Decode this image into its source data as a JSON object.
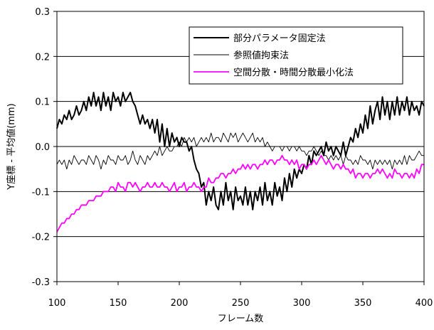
{
  "chart_data": {
    "type": "line",
    "xlabel": "フレーム数",
    "ylabel": "Y座標 - 平均値(mm)",
    "xlim": [
      100,
      400
    ],
    "ylim": [
      -0.3,
      0.3
    ],
    "xticks": [
      100,
      150,
      200,
      250,
      300,
      350,
      400
    ],
    "yticks": [
      -0.3,
      -0.2,
      -0.1,
      0.0,
      0.1,
      0.2,
      0.3
    ],
    "xtick_labels": [
      "100",
      "150",
      "200",
      "250",
      "300",
      "350",
      "400"
    ],
    "ytick_labels": [
      "-0.3",
      "-0.2",
      "-0.1",
      "0.0",
      "0.1",
      "0.2",
      "0.3"
    ],
    "grid": "horizontal",
    "legend_position": "top-right",
    "series": [
      {
        "name": "部分パラメータ固定法",
        "color": "#000000",
        "style": "thick",
        "x": [
          100,
          102,
          104,
          106,
          108,
          110,
          112,
          114,
          116,
          118,
          120,
          122,
          124,
          126,
          128,
          130,
          132,
          134,
          136,
          138,
          140,
          142,
          144,
          146,
          148,
          150,
          152,
          154,
          156,
          158,
          160,
          162,
          164,
          166,
          168,
          170,
          172,
          174,
          176,
          178,
          180,
          182,
          184,
          186,
          188,
          190,
          192,
          194,
          196,
          198,
          200,
          202,
          204,
          206,
          208,
          210,
          212,
          214,
          216,
          218,
          220,
          222,
          224,
          226,
          228,
          230,
          232,
          234,
          236,
          238,
          240,
          242,
          244,
          246,
          248,
          250,
          252,
          254,
          256,
          258,
          260,
          262,
          264,
          266,
          268,
          270,
          272,
          274,
          276,
          278,
          280,
          282,
          284,
          286,
          288,
          290,
          292,
          294,
          296,
          298,
          300,
          302,
          304,
          306,
          308,
          310,
          312,
          314,
          316,
          318,
          320,
          322,
          324,
          326,
          328,
          330,
          332,
          334,
          336,
          338,
          340,
          342,
          344,
          346,
          348,
          350,
          352,
          354,
          356,
          358,
          360,
          362,
          364,
          366,
          368,
          370,
          372,
          374,
          376,
          378,
          380,
          382,
          384,
          386,
          388,
          390,
          392,
          394,
          396,
          398,
          400
        ],
        "values": [
          0.04,
          0.06,
          0.05,
          0.07,
          0.06,
          0.08,
          0.06,
          0.07,
          0.09,
          0.07,
          0.08,
          0.1,
          0.08,
          0.11,
          0.09,
          0.12,
          0.09,
          0.11,
          0.08,
          0.12,
          0.09,
          0.11,
          0.08,
          0.12,
          0.1,
          0.11,
          0.09,
          0.12,
          0.1,
          0.11,
          0.12,
          0.1,
          0.09,
          0.07,
          0.05,
          0.07,
          0.05,
          0.06,
          0.04,
          0.06,
          0.03,
          0.06,
          0.01,
          0.05,
          0.0,
          0.04,
          0.0,
          0.03,
          0.01,
          0.02,
          0.0,
          0.02,
          0.01,
          0.01,
          -0.01,
          0.0,
          -0.03,
          -0.05,
          -0.06,
          -0.09,
          -0.08,
          -0.13,
          -0.1,
          -0.12,
          -0.09,
          -0.13,
          -0.14,
          -0.1,
          -0.13,
          -0.08,
          -0.12,
          -0.1,
          -0.14,
          -0.09,
          -0.12,
          -0.11,
          -0.13,
          -0.09,
          -0.13,
          -0.1,
          -0.14,
          -0.1,
          -0.12,
          -0.09,
          -0.13,
          -0.08,
          -0.12,
          -0.1,
          -0.13,
          -0.08,
          -0.11,
          -0.09,
          -0.12,
          -0.07,
          -0.1,
          -0.06,
          -0.09,
          -0.05,
          -0.07,
          -0.05,
          -0.06,
          -0.04,
          -0.05,
          -0.02,
          -0.04,
          -0.01,
          -0.02,
          -0.01,
          0.0,
          -0.02,
          0.01,
          -0.01,
          0.0,
          -0.02,
          0.0,
          -0.01,
          -0.02,
          0.01,
          -0.02,
          0.0,
          0.02,
          0.01,
          0.04,
          0.02,
          0.05,
          0.03,
          0.07,
          0.04,
          0.09,
          0.05,
          0.08,
          0.1,
          0.06,
          0.11,
          0.07,
          0.1,
          0.06,
          0.1,
          0.07,
          0.11,
          0.07,
          0.1,
          0.08,
          0.11,
          0.07,
          0.1,
          0.08,
          0.09,
          0.07,
          0.1,
          0.09
        ]
      },
      {
        "name": "参照値拘束法",
        "color": "#000000",
        "style": "thin",
        "x": [
          100,
          102,
          104,
          106,
          108,
          110,
          112,
          114,
          116,
          118,
          120,
          122,
          124,
          126,
          128,
          130,
          132,
          134,
          136,
          138,
          140,
          142,
          144,
          146,
          148,
          150,
          152,
          154,
          156,
          158,
          160,
          162,
          164,
          166,
          168,
          170,
          172,
          174,
          176,
          178,
          180,
          182,
          184,
          186,
          188,
          190,
          192,
          194,
          196,
          198,
          200,
          202,
          204,
          206,
          208,
          210,
          212,
          214,
          216,
          218,
          220,
          222,
          224,
          226,
          228,
          230,
          232,
          234,
          236,
          238,
          240,
          242,
          244,
          246,
          248,
          250,
          252,
          254,
          256,
          258,
          260,
          262,
          264,
          266,
          268,
          270,
          272,
          274,
          276,
          278,
          280,
          282,
          284,
          286,
          288,
          290,
          292,
          294,
          296,
          298,
          300,
          302,
          304,
          306,
          308,
          310,
          312,
          314,
          316,
          318,
          320,
          322,
          324,
          326,
          328,
          330,
          332,
          334,
          336,
          338,
          340,
          342,
          344,
          346,
          348,
          350,
          352,
          354,
          356,
          358,
          360,
          362,
          364,
          366,
          368,
          370,
          372,
          374,
          376,
          378,
          380,
          382,
          384,
          386,
          388,
          390,
          392,
          394,
          396,
          398,
          400
        ],
        "values": [
          -0.04,
          -0.03,
          -0.04,
          -0.03,
          -0.05,
          -0.03,
          -0.04,
          -0.02,
          -0.03,
          -0.04,
          -0.03,
          -0.03,
          -0.04,
          -0.02,
          -0.03,
          -0.04,
          -0.02,
          -0.03,
          -0.05,
          -0.03,
          -0.04,
          -0.02,
          -0.03,
          -0.03,
          -0.04,
          -0.02,
          -0.03,
          -0.03,
          -0.02,
          -0.04,
          -0.03,
          -0.01,
          -0.03,
          -0.04,
          -0.02,
          -0.03,
          -0.04,
          -0.02,
          -0.03,
          -0.02,
          -0.01,
          -0.02,
          0.0,
          -0.02,
          -0.01,
          0.0,
          -0.01,
          -0.01,
          0.0,
          0.0,
          0.01,
          0.0,
          0.02,
          0.01,
          0.02,
          0.01,
          0.02,
          0.0,
          0.01,
          0.02,
          0.01,
          0.02,
          0.01,
          0.03,
          0.01,
          0.02,
          0.02,
          0.01,
          0.03,
          0.02,
          0.01,
          0.03,
          0.02,
          0.03,
          0.01,
          0.02,
          0.03,
          0.02,
          0.01,
          0.02,
          0.03,
          0.01,
          0.02,
          0.01,
          0.02,
          0.0,
          0.01,
          0.0,
          -0.01,
          0.0,
          0.0,
          0.0,
          -0.01,
          0.0,
          0.0,
          -0.01,
          0.0,
          0.0,
          -0.01,
          0.0,
          -0.01,
          -0.01,
          -0.02,
          -0.01,
          -0.01,
          0.0,
          -0.01,
          -0.02,
          -0.01,
          -0.02,
          -0.02,
          -0.03,
          -0.02,
          -0.03,
          -0.02,
          -0.03,
          -0.02,
          -0.04,
          -0.02,
          -0.03,
          -0.03,
          -0.04,
          -0.03,
          -0.04,
          -0.02,
          -0.03,
          -0.03,
          -0.04,
          -0.03,
          -0.05,
          -0.03,
          -0.04,
          -0.03,
          -0.04,
          -0.03,
          -0.04,
          -0.03,
          -0.05,
          -0.03,
          -0.04,
          -0.03,
          -0.04,
          -0.02,
          -0.04,
          -0.02,
          -0.03,
          -0.03,
          -0.02,
          -0.01,
          -0.02,
          -0.02
        ]
      },
      {
        "name": "空間分散・時間分散最小化法",
        "color": "#ff00ff",
        "style": "medium",
        "x": [
          100,
          102,
          104,
          106,
          108,
          110,
          112,
          114,
          116,
          118,
          120,
          122,
          124,
          126,
          128,
          130,
          132,
          134,
          136,
          138,
          140,
          142,
          144,
          146,
          148,
          150,
          152,
          154,
          156,
          158,
          160,
          162,
          164,
          166,
          168,
          170,
          172,
          174,
          176,
          178,
          180,
          182,
          184,
          186,
          188,
          190,
          192,
          194,
          196,
          198,
          200,
          202,
          204,
          206,
          208,
          210,
          212,
          214,
          216,
          218,
          220,
          222,
          224,
          226,
          228,
          230,
          232,
          234,
          236,
          238,
          240,
          242,
          244,
          246,
          248,
          250,
          252,
          254,
          256,
          258,
          260,
          262,
          264,
          266,
          268,
          270,
          272,
          274,
          276,
          278,
          280,
          282,
          284,
          286,
          288,
          290,
          292,
          294,
          296,
          298,
          300,
          302,
          304,
          306,
          308,
          310,
          312,
          314,
          316,
          318,
          320,
          322,
          324,
          326,
          328,
          330,
          332,
          334,
          336,
          338,
          340,
          342,
          344,
          346,
          348,
          350,
          352,
          354,
          356,
          358,
          360,
          362,
          364,
          366,
          368,
          370,
          372,
          374,
          376,
          378,
          380,
          382,
          384,
          386,
          388,
          390,
          392,
          394,
          396,
          398,
          400
        ],
        "values": [
          -0.19,
          -0.18,
          -0.17,
          -0.17,
          -0.16,
          -0.16,
          -0.15,
          -0.15,
          -0.14,
          -0.14,
          -0.13,
          -0.13,
          -0.13,
          -0.12,
          -0.12,
          -0.12,
          -0.11,
          -0.11,
          -0.11,
          -0.1,
          -0.1,
          -0.1,
          -0.09,
          -0.09,
          -0.1,
          -0.08,
          -0.09,
          -0.09,
          -0.1,
          -0.08,
          -0.08,
          -0.09,
          -0.08,
          -0.09,
          -0.1,
          -0.09,
          -0.09,
          -0.08,
          -0.09,
          -0.09,
          -0.08,
          -0.09,
          -0.09,
          -0.08,
          -0.09,
          -0.09,
          -0.1,
          -0.09,
          -0.08,
          -0.1,
          -0.09,
          -0.09,
          -0.08,
          -0.1,
          -0.09,
          -0.09,
          -0.08,
          -0.09,
          -0.09,
          -0.1,
          -0.09,
          -0.09,
          -0.07,
          -0.08,
          -0.08,
          -0.07,
          -0.07,
          -0.06,
          -0.06,
          -0.07,
          -0.06,
          -0.06,
          -0.05,
          -0.06,
          -0.05,
          -0.05,
          -0.04,
          -0.05,
          -0.04,
          -0.05,
          -0.04,
          -0.04,
          -0.05,
          -0.04,
          -0.04,
          -0.03,
          -0.04,
          -0.03,
          -0.03,
          -0.04,
          -0.03,
          -0.03,
          -0.02,
          -0.03,
          -0.03,
          -0.04,
          -0.03,
          -0.04,
          -0.03,
          -0.05,
          -0.04,
          -0.04,
          -0.05,
          -0.04,
          -0.04,
          -0.03,
          -0.04,
          -0.03,
          -0.02,
          -0.03,
          -0.04,
          -0.03,
          -0.04,
          -0.05,
          -0.04,
          -0.04,
          -0.05,
          -0.04,
          -0.05,
          -0.05,
          -0.06,
          -0.05,
          -0.07,
          -0.06,
          -0.06,
          -0.07,
          -0.06,
          -0.06,
          -0.07,
          -0.06,
          -0.06,
          -0.05,
          -0.06,
          -0.05,
          -0.06,
          -0.07,
          -0.06,
          -0.07,
          -0.05,
          -0.06,
          -0.06,
          -0.07,
          -0.06,
          -0.06,
          -0.07,
          -0.06,
          -0.07,
          -0.05,
          -0.06,
          -0.04,
          -0.04
        ]
      }
    ]
  }
}
